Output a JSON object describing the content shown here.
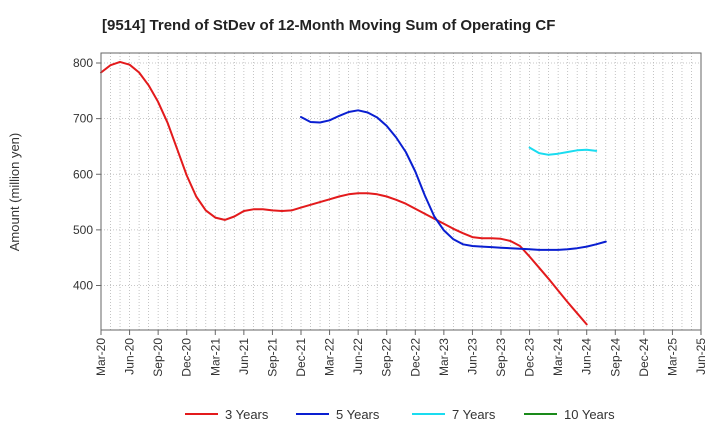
{
  "chart_data": {
    "type": "line",
    "title": "[9514]  Trend of StDev of 12-Month Moving Sum of Operating CF",
    "xlabel": "",
    "ylabel": "Amount (million yen)",
    "ylim": [
      320,
      818
    ],
    "yticks": [
      400,
      500,
      600,
      700,
      800
    ],
    "x_tick_labels": [
      "Mar-20",
      "Jun-20",
      "Sep-20",
      "Dec-20",
      "Mar-21",
      "Jun-21",
      "Sep-21",
      "Dec-21",
      "Mar-22",
      "Jun-22",
      "Sep-22",
      "Dec-22",
      "Mar-23",
      "Jun-23",
      "Sep-23",
      "Dec-23",
      "Mar-24",
      "Jun-24",
      "Sep-24",
      "Dec-24",
      "Mar-25",
      "Jun-25"
    ],
    "x_range_months": [
      0,
      63
    ],
    "grid": true,
    "legend_position": "bottom",
    "series": [
      {
        "name": "3 Years",
        "color": "#e31a1c",
        "start_month": 0,
        "values": [
          783,
          796,
          802,
          797,
          783,
          760,
          730,
          692,
          645,
          598,
          560,
          535,
          522,
          518,
          524,
          534,
          537,
          537,
          535,
          534,
          535,
          540,
          545,
          550,
          555,
          560,
          564,
          566,
          566,
          564,
          560,
          554,
          547,
          538,
          529,
          520,
          511,
          502,
          494,
          487,
          485,
          485,
          484,
          480,
          471,
          452,
          432,
          412,
          391,
          370,
          350,
          330
        ]
      },
      {
        "name": "5 Years",
        "color": "#0a1fd1",
        "start_month": 21,
        "values": [
          703,
          694,
          693,
          697,
          705,
          712,
          715,
          711,
          702,
          687,
          666,
          640,
          605,
          562,
          524,
          499,
          483,
          474,
          471,
          470,
          469,
          468,
          467,
          466,
          465,
          464,
          464,
          464,
          465,
          467,
          470,
          474,
          479
        ]
      },
      {
        "name": "7 Years",
        "color": "#1adcf0",
        "start_month": 45,
        "values": [
          648,
          638,
          635,
          637,
          640,
          643,
          644,
          642
        ]
      },
      {
        "name": "10 Years",
        "color": "#1a8a1a",
        "start_month": 0,
        "values": []
      }
    ]
  }
}
